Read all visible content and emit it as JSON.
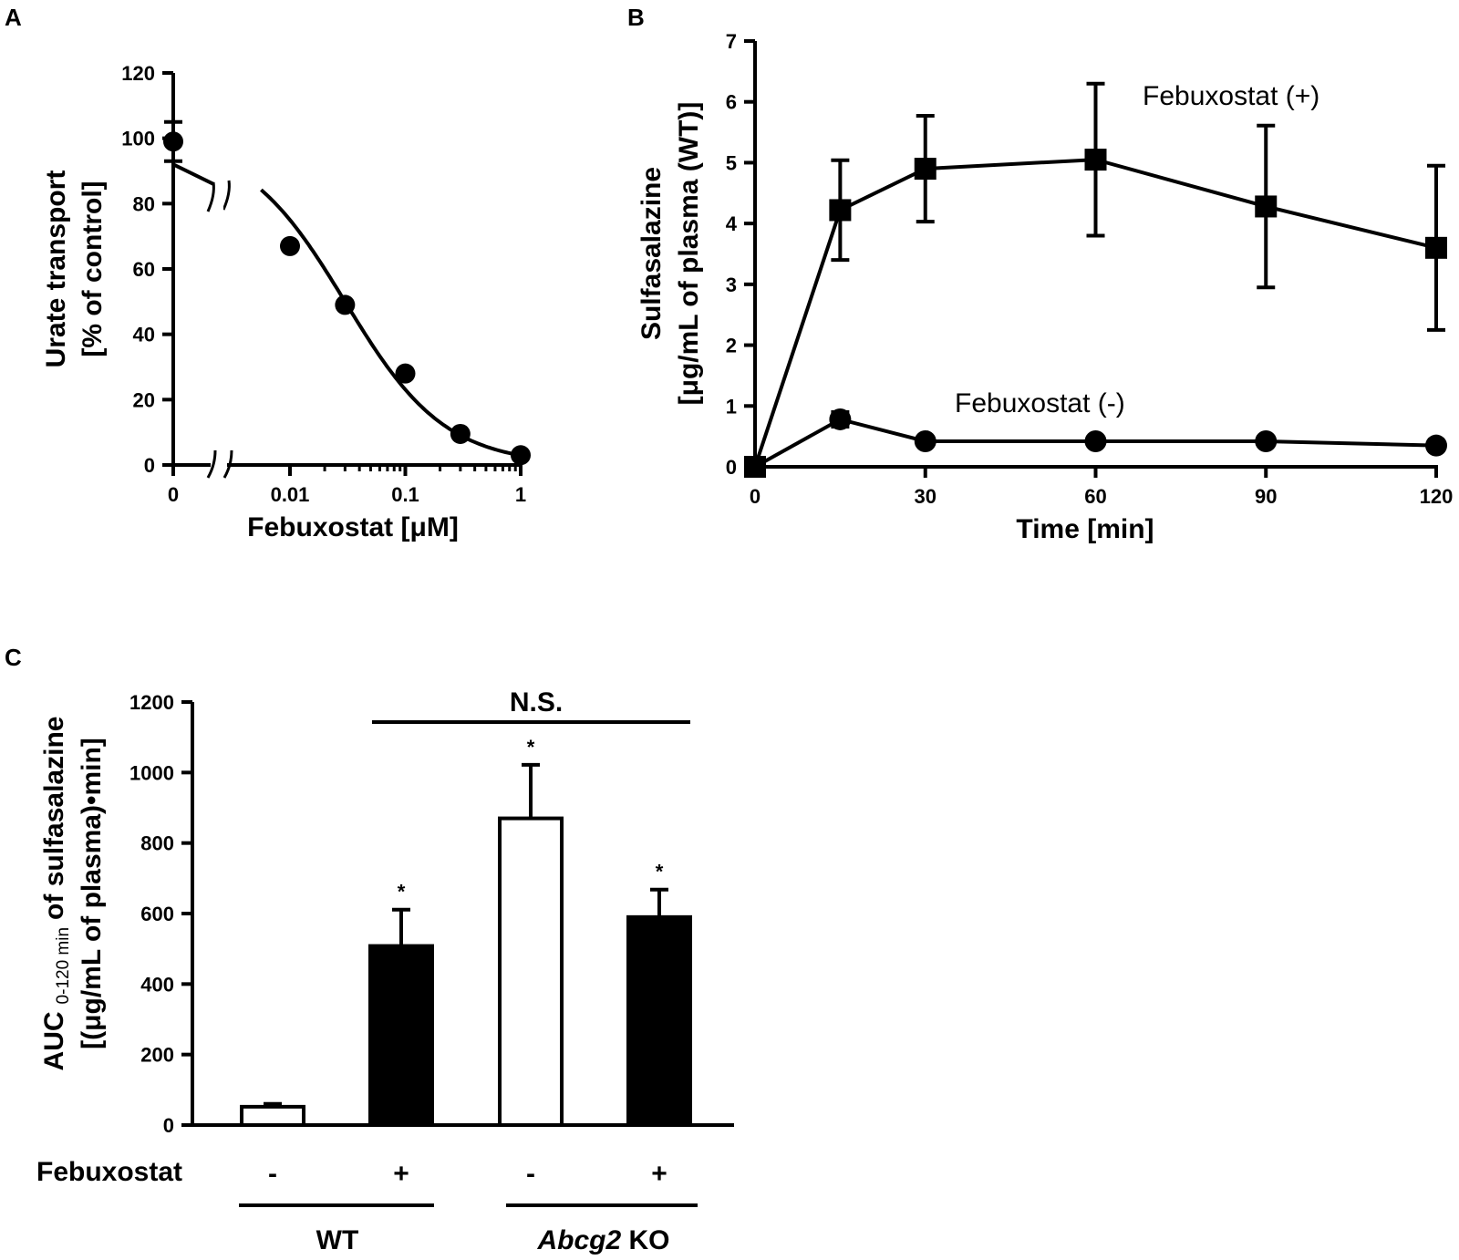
{
  "chart_data": [
    {
      "panel": "A",
      "type": "line",
      "xscale": "log",
      "xlabel": "Febuxostat [μM]",
      "ylabel": [
        "Urate transport",
        "[% of control]"
      ],
      "x_tick_labels": [
        "0",
        "0.01",
        "0.1",
        "1"
      ],
      "y_ticks": [
        0,
        20,
        40,
        60,
        80,
        100,
        120
      ],
      "ylim": [
        0,
        120
      ],
      "axis_break": true,
      "control": {
        "x": 0,
        "y": 99,
        "err": 6
      },
      "points": [
        {
          "x": 0.01,
          "y": 67
        },
        {
          "x": 0.03,
          "y": 49
        },
        {
          "x": 0.1,
          "y": 28
        },
        {
          "x": 0.3,
          "y": 9.5
        },
        {
          "x": 1,
          "y": 3
        }
      ],
      "fit": {
        "top": 100,
        "bottom": 0,
        "ic50": 0.03,
        "hill": 1.0
      }
    },
    {
      "panel": "B",
      "type": "line",
      "xlabel": "Time [min]",
      "ylabel": [
        "Sulfasalazine",
        "[μg/mL of plasma (WT)]"
      ],
      "x_ticks": [
        0,
        30,
        60,
        90,
        120
      ],
      "y_ticks": [
        0,
        1,
        2,
        3,
        4,
        5,
        6,
        7
      ],
      "xlim": [
        0,
        120
      ],
      "ylim": [
        0,
        7
      ],
      "series": [
        {
          "name": "Febuxostat (+)",
          "marker": "square",
          "x": [
            0,
            15,
            30,
            60,
            90,
            120
          ],
          "y": [
            0,
            4.22,
            4.9,
            5.05,
            4.28,
            3.6
          ],
          "err": [
            0,
            0.82,
            0.87,
            1.25,
            1.33,
            1.35
          ]
        },
        {
          "name": "Febuxostat (-)",
          "marker": "circle",
          "x": [
            0,
            15,
            30,
            60,
            90,
            120
          ],
          "y": [
            0,
            0.78,
            0.42,
            0.42,
            0.42,
            0.35
          ],
          "err": [
            0,
            0.12,
            0,
            0,
            0,
            0
          ]
        }
      ]
    },
    {
      "panel": "C",
      "type": "bar",
      "ylabel_main": "AUC",
      "ylabel_sub": "0-120 min",
      "ylabel_rest": "of sulfasalazine",
      "ylabel_line2": "[(μg/mL of plasma)•min]",
      "y_ticks": [
        0,
        200,
        400,
        600,
        800,
        1000,
        1200
      ],
      "ylim": [
        0,
        1200
      ],
      "row_label": "Febuxostat",
      "bars": [
        {
          "group": "WT",
          "febuxostat": "-",
          "value": 52,
          "err": 8,
          "fill": "#ffffff",
          "sig": ""
        },
        {
          "group": "WT",
          "febuxostat": "+",
          "value": 508,
          "err": 103,
          "fill": "#000000",
          "sig": "*"
        },
        {
          "group": "Abcg2 KO",
          "febuxostat": "-",
          "value": 870,
          "err": 152,
          "fill": "#ffffff",
          "sig": "*"
        },
        {
          "group": "Abcg2 KO",
          "febuxostat": "+",
          "value": 590,
          "err": 78,
          "fill": "#000000",
          "sig": "*"
        }
      ],
      "groups": [
        {
          "label": "WT",
          "italic_part": "",
          "rest": "WT"
        },
        {
          "label": "Abcg2 KO",
          "italic_part": "Abcg2",
          "rest": " KO"
        }
      ],
      "comparison_label": "N.S."
    }
  ]
}
